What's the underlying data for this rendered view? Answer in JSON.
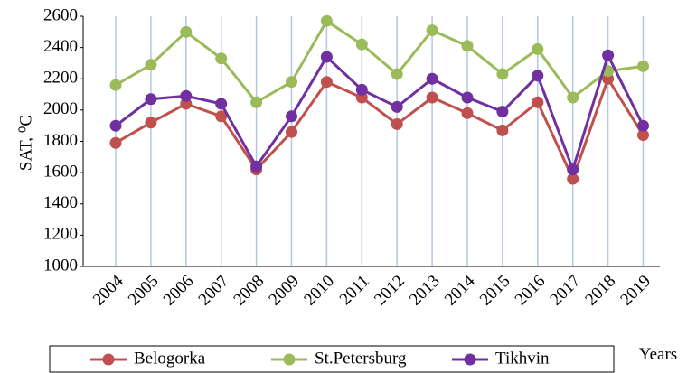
{
  "chart_data": {
    "type": "line",
    "y_label": "SAT, ⁰C",
    "x_label": "Years",
    "categories": [
      "2004",
      "2005",
      "2006",
      "2007",
      "2008",
      "2009",
      "2010",
      "2011",
      "2012",
      "2013",
      "2014",
      "2015",
      "2016",
      "2017",
      "2018",
      "2019"
    ],
    "series": [
      {
        "name": "Belogorka",
        "color": "#c0504d",
        "values": [
          1790,
          1920,
          2040,
          1960,
          1620,
          1860,
          2180,
          2080,
          1910,
          2080,
          1980,
          1870,
          2050,
          1560,
          2200,
          1840
        ]
      },
      {
        "name": "St.Petersburg",
        "color": "#9bbb59",
        "values": [
          2160,
          2290,
          2500,
          2330,
          2050,
          2180,
          2570,
          2420,
          2230,
          2510,
          2410,
          2230,
          2390,
          2080,
          2250,
          2280
        ]
      },
      {
        "name": "Tikhvin",
        "color": "#7030a0",
        "values": [
          1900,
          2070,
          2090,
          2040,
          1640,
          1960,
          2340,
          2130,
          2020,
          2200,
          2080,
          1990,
          2220,
          1620,
          2350,
          1900
        ]
      }
    ],
    "ylim": [
      1000,
      2600
    ],
    "yticks": [
      1000,
      1200,
      1400,
      1600,
      1800,
      2000,
      2200,
      2400,
      2600
    ],
    "grid": true
  }
}
